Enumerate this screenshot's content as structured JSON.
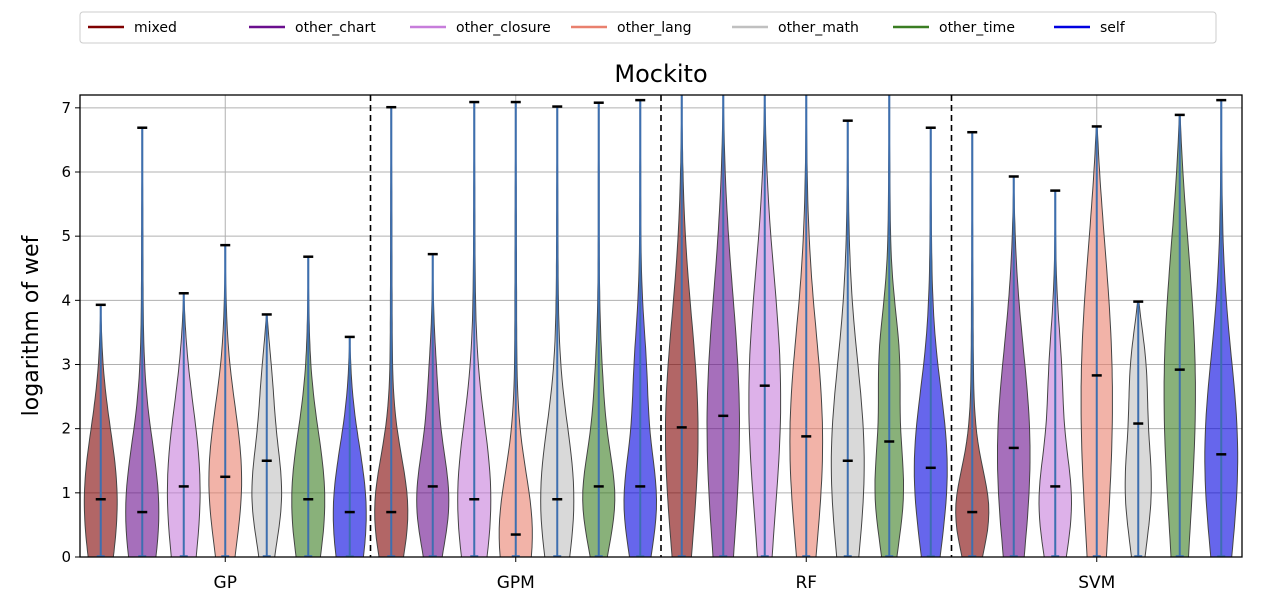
{
  "chart_data": {
    "type": "violin",
    "title": "Mockito",
    "xlabel": "",
    "ylabel": "logarithm of wef",
    "ylim": [
      0,
      7.2
    ],
    "yticks": [
      0,
      1,
      2,
      3,
      4,
      5,
      6,
      7
    ],
    "grid": true,
    "legend_position": "top",
    "groups": [
      "GP",
      "GPM",
      "RF",
      "SVM"
    ],
    "series": [
      {
        "name": "mixed",
        "color": "#7f0000",
        "max": [
          3.93,
          7.01,
          7.2,
          6.62
        ],
        "median": [
          0.9,
          0.7,
          2.02,
          0.7
        ]
      },
      {
        "name": "other_chart",
        "color": "#6a0f8e",
        "max": [
          6.69,
          4.72,
          7.2,
          5.93
        ],
        "median": [
          0.7,
          1.1,
          2.2,
          1.7
        ]
      },
      {
        "name": "other_closure",
        "color": "#c77ddb",
        "max": [
          4.11,
          7.09,
          7.2,
          5.71
        ],
        "median": [
          1.1,
          0.9,
          2.67,
          1.1
        ]
      },
      {
        "name": "other_lang",
        "color": "#e9806e",
        "max": [
          4.86,
          7.09,
          7.2,
          6.71
        ],
        "median": [
          1.25,
          0.35,
          1.88,
          2.83
        ]
      },
      {
        "name": "other_math",
        "color": "#c0c0c0",
        "max": [
          3.78,
          7.02,
          6.8,
          3.98
        ],
        "median": [
          1.5,
          0.9,
          1.5,
          2.08
        ]
      },
      {
        "name": "other_time",
        "color": "#3a7d22",
        "max": [
          4.68,
          7.08,
          7.2,
          6.89
        ],
        "median": [
          0.9,
          1.1,
          1.8,
          2.92
        ]
      },
      {
        "name": "self",
        "color": "#0000e0",
        "max": [
          3.43,
          7.12,
          6.69,
          7.12
        ],
        "median": [
          0.7,
          1.1,
          1.39,
          1.6
        ]
      }
    ]
  }
}
